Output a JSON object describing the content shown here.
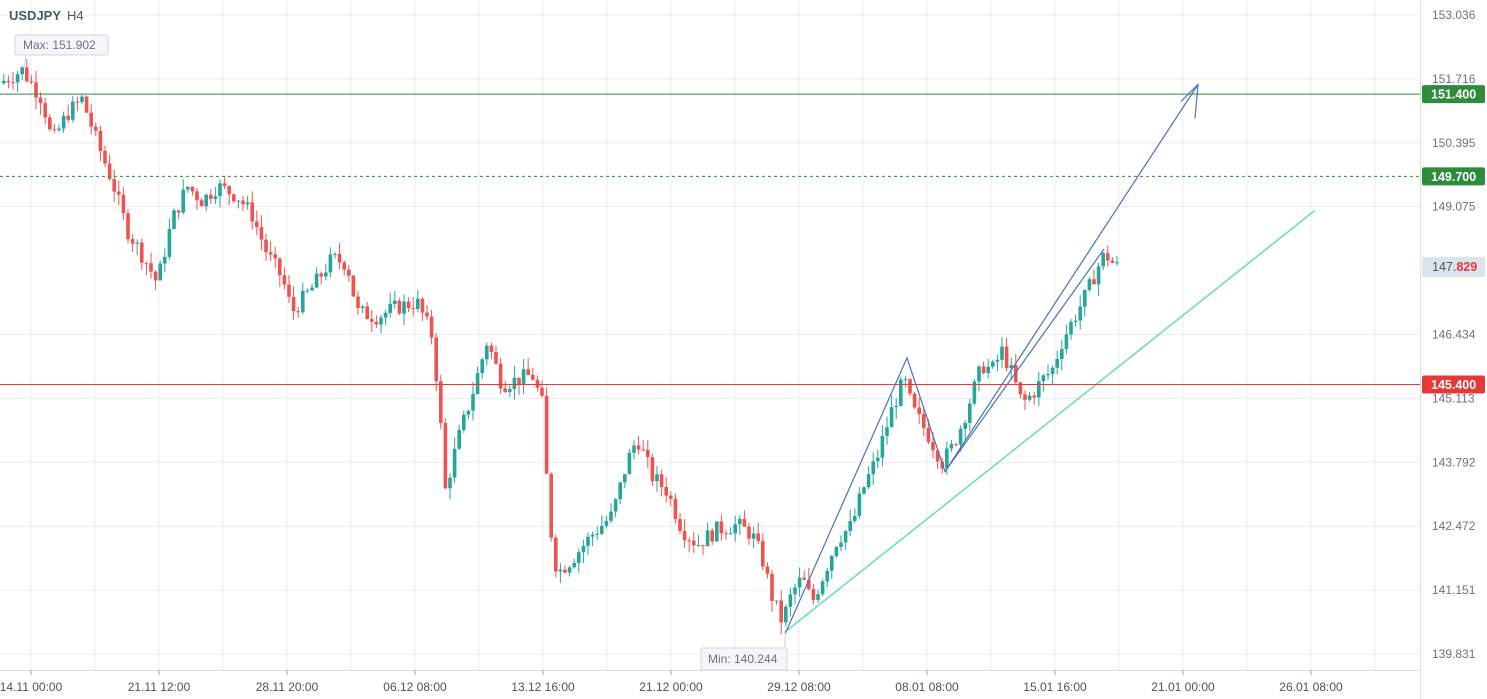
{
  "header": {
    "symbol": "USDJPY",
    "timeframe": "H4"
  },
  "colors": {
    "bull": "#26a69a",
    "bear": "#ef5350",
    "resistance": "#2e8b3e",
    "support": "#e53935",
    "channel_line": "#4a74b8",
    "trend_line": "#66e0a3",
    "grid": "#e8ecf5",
    "current_price_bg": "#dde3ec"
  },
  "chart_data": {
    "type": "candlestick",
    "title": "USDJPY H4",
    "y_ticks": [
      "153.036",
      "151.716",
      "150.395",
      "149.075",
      "146.434",
      "145.113",
      "143.792",
      "142.472",
      "141.151",
      "139.831"
    ],
    "x_ticks": [
      "14.11 00:00",
      "21.11 12:00",
      "28.11 20:00",
      "06.12 08:00",
      "13.12 16:00",
      "21.12 00:00",
      "29.12 08:00",
      "08.01 08:00",
      "15.01 16:00",
      "21.01 00:00",
      "26.01 08:00"
    ],
    "ylim": [
      139.4,
      153.5
    ],
    "max_label": "Max: 151.902",
    "min_label": "Min: 140.244",
    "levels": [
      {
        "label": "151.400",
        "value": 151.4,
        "color": "#2e8b3e",
        "style": "solid"
      },
      {
        "label": "149.700",
        "value": 149.7,
        "color": "#2e8b3e",
        "style": "dashed"
      },
      {
        "label": "145.400",
        "value": 145.4,
        "color": "#e53935",
        "style": "solid"
      }
    ],
    "current_price": {
      "prefix": "147.",
      "suffix": "829",
      "value": 147.829
    },
    "price_path": [
      [
        0,
        151.6
      ],
      [
        25,
        151.9
      ],
      [
        45,
        151.3
      ],
      [
        55,
        150.4
      ],
      [
        70,
        151.0
      ],
      [
        85,
        151.3
      ],
      [
        100,
        150.4
      ],
      [
        115,
        149.6
      ],
      [
        130,
        148.6
      ],
      [
        150,
        147.9
      ],
      [
        160,
        147.5
      ],
      [
        175,
        148.8
      ],
      [
        190,
        149.5
      ],
      [
        205,
        149.2
      ],
      [
        220,
        149.5
      ],
      [
        240,
        149.3
      ],
      [
        255,
        148.9
      ],
      [
        270,
        148.1
      ],
      [
        285,
        147.6
      ],
      [
        295,
        146.9
      ],
      [
        315,
        147.4
      ],
      [
        335,
        148.0
      ],
      [
        350,
        147.9
      ],
      [
        360,
        146.9
      ],
      [
        380,
        146.8
      ],
      [
        400,
        147.0
      ],
      [
        420,
        147.1
      ],
      [
        435,
        146.4
      ],
      [
        442,
        145.0
      ],
      [
        448,
        143.2
      ],
      [
        460,
        144.2
      ],
      [
        475,
        145.2
      ],
      [
        490,
        146.3
      ],
      [
        505,
        145.4
      ],
      [
        520,
        145.5
      ],
      [
        535,
        145.6
      ],
      [
        545,
        145.0
      ],
      [
        552,
        142.6
      ],
      [
        560,
        141.5
      ],
      [
        575,
        141.8
      ],
      [
        595,
        142.3
      ],
      [
        615,
        142.7
      ],
      [
        630,
        143.8
      ],
      [
        640,
        144.3
      ],
      [
        655,
        143.5
      ],
      [
        670,
        143.2
      ],
      [
        685,
        142.4
      ],
      [
        700,
        142.1
      ],
      [
        720,
        142.4
      ],
      [
        740,
        142.5
      ],
      [
        755,
        142.3
      ],
      [
        765,
        141.8
      ],
      [
        775,
        141.0
      ],
      [
        785,
        140.5
      ],
      [
        795,
        141.1
      ],
      [
        805,
        141.4
      ],
      [
        815,
        140.9
      ],
      [
        825,
        141.4
      ],
      [
        840,
        142.2
      ],
      [
        855,
        142.5
      ],
      [
        865,
        143.2
      ],
      [
        880,
        143.9
      ],
      [
        895,
        144.9
      ],
      [
        907,
        145.5
      ],
      [
        915,
        144.9
      ],
      [
        930,
        144.4
      ],
      [
        945,
        143.8
      ],
      [
        955,
        144.1
      ],
      [
        965,
        144.6
      ],
      [
        975,
        145.2
      ],
      [
        985,
        145.8
      ],
      [
        995,
        145.7
      ],
      [
        1005,
        146.1
      ],
      [
        1015,
        145.6
      ],
      [
        1025,
        145.0
      ],
      [
        1035,
        145.2
      ],
      [
        1045,
        145.5
      ],
      [
        1055,
        145.7
      ],
      [
        1065,
        146.3
      ],
      [
        1080,
        146.9
      ],
      [
        1090,
        147.3
      ],
      [
        1100,
        147.8
      ],
      [
        1108,
        148.1
      ],
      [
        1116,
        147.9
      ],
      [
        1120,
        147.83
      ]
    ]
  }
}
